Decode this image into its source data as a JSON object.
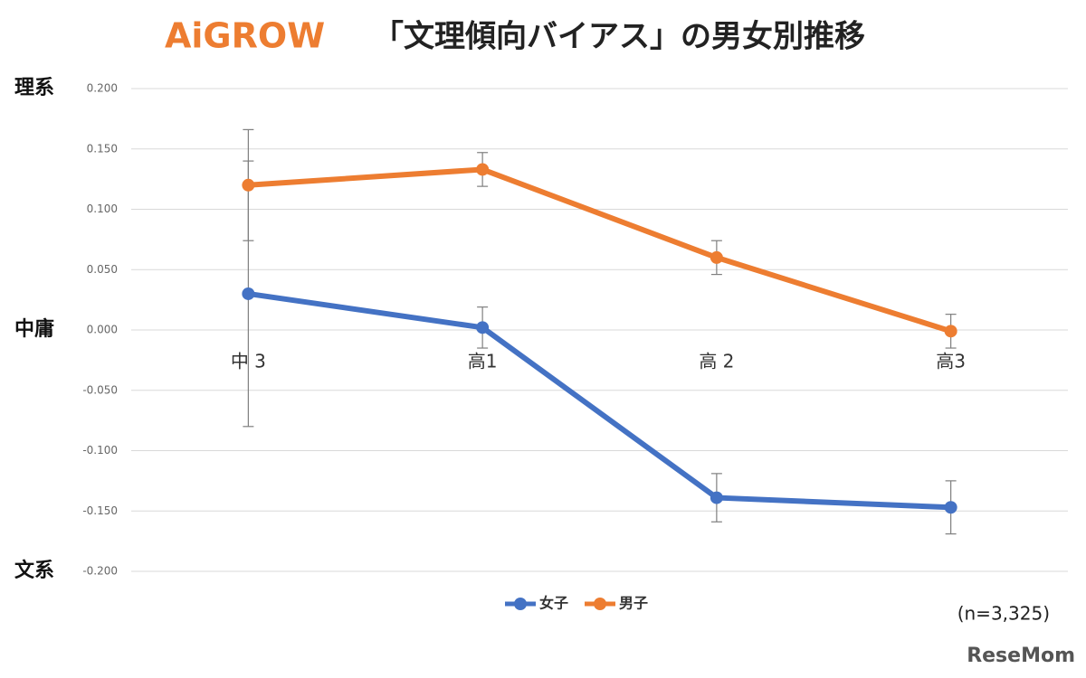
{
  "chart_data": {
    "type": "line",
    "logo": "AiGROW",
    "title": "「文理傾向バイアス」の男女別推移",
    "annotations": [
      "理系",
      "中庸",
      "文系"
    ],
    "note": "(n=3,325)",
    "watermark": "ReseMom",
    "categories": [
      "中 3",
      "高1",
      "高 2",
      "高3"
    ],
    "series": [
      {
        "name": "女子",
        "color": "#4472c4",
        "values": [
          0.03,
          0.002,
          -0.139,
          -0.147
        ],
        "errors": [
          0.11,
          0.017,
          0.02,
          0.022
        ]
      },
      {
        "name": "男子",
        "color": "#ed7d31",
        "values": [
          0.12,
          0.133,
          0.06,
          -0.001
        ],
        "errors": [
          0.046,
          0.014,
          0.014,
          0.014
        ]
      }
    ],
    "ylim": [
      -0.2,
      0.2
    ],
    "yticks": [
      {
        "value": 0.2,
        "label": "0.200"
      },
      {
        "value": 0.15,
        "label": "0.150"
      },
      {
        "value": 0.1,
        "label": "0.100"
      },
      {
        "value": 0.05,
        "label": "0.050"
      },
      {
        "value": 0,
        "label": "0.000"
      },
      {
        "value": -0.05,
        "label": "-0.050"
      },
      {
        "value": -0.1,
        "label": "-0.100"
      },
      {
        "value": -0.15,
        "label": "-0.150"
      },
      {
        "value": -0.2,
        "label": "-0.200"
      }
    ],
    "grid": true,
    "legend": "bottom"
  }
}
